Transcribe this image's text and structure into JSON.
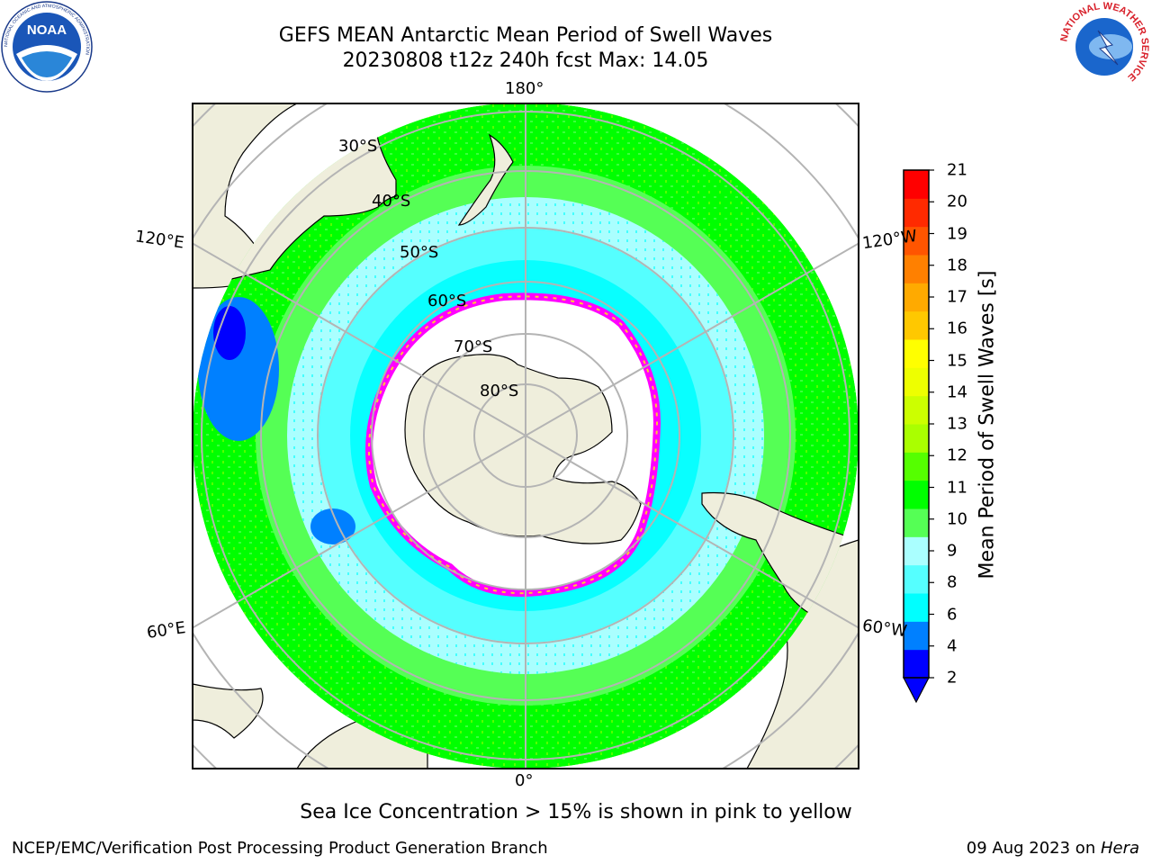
{
  "title": {
    "line1": "GEFS MEAN Antarctic Mean Period of Swell Waves",
    "line2": "20230808 t12z 240h fcst   Max: 14.05"
  },
  "map": {
    "projection": "south-polar-stereographic",
    "lon_labels": {
      "top": "180°",
      "bottom": "0°",
      "upper_left": "120°E",
      "upper_right": "120°W",
      "lower_left": "60°E",
      "lower_right": "60°W"
    },
    "lat_labels": [
      "30°S",
      "40°S",
      "50°S",
      "60°S",
      "70°S",
      "80°S"
    ],
    "colors": {
      "land": "#efeedc",
      "ice_free_ocean_mask": "#ffffff",
      "graticule": "#b4b4b4"
    },
    "ocean_field_description_colors": [
      "#00ff00",
      "#55ff55",
      "#00ffff",
      "#55ffff",
      "#aaffff",
      "#0000ff"
    ],
    "sea_ice_edge_colors": [
      "#ff00ff",
      "#ff66cc",
      "#ffcc33"
    ]
  },
  "colorbar": {
    "label": "Mean Period of Swell Waves [s]",
    "ticks": [
      "2",
      "4",
      "6",
      "8",
      "9",
      "10",
      "11",
      "12",
      "13",
      "14",
      "15",
      "16",
      "17",
      "18",
      "19",
      "20",
      "21"
    ],
    "colors": [
      "#0000ff",
      "#0080ff",
      "#00ffff",
      "#55ffff",
      "#aaffff",
      "#55ff55",
      "#00ff00",
      "#55ff00",
      "#aaff00",
      "#ccff00",
      "#eeff00",
      "#ffff00",
      "#ffc800",
      "#ffaa00",
      "#ff8000",
      "#ff5500",
      "#ff2a00",
      "#ff0000"
    ],
    "under_color": "#0000ff"
  },
  "note": "Sea Ice Concentration > 15% is shown in pink to yellow",
  "footer": {
    "left": "NCEP/EMC/Verification Post Processing Product Generation Branch",
    "date": "09 Aug 2023 on ",
    "host": "Hera"
  },
  "logos": {
    "noaa_text": "NOAA",
    "noaa_ring_top": "NATIONAL OCEANIC AND ATMOSPHERIC ADMINISTRATION",
    "noaa_ring_bottom": "U.S. DEPARTMENT OF COMMERCE",
    "nws_ring": "NATIONAL WEATHER SERVICE"
  }
}
